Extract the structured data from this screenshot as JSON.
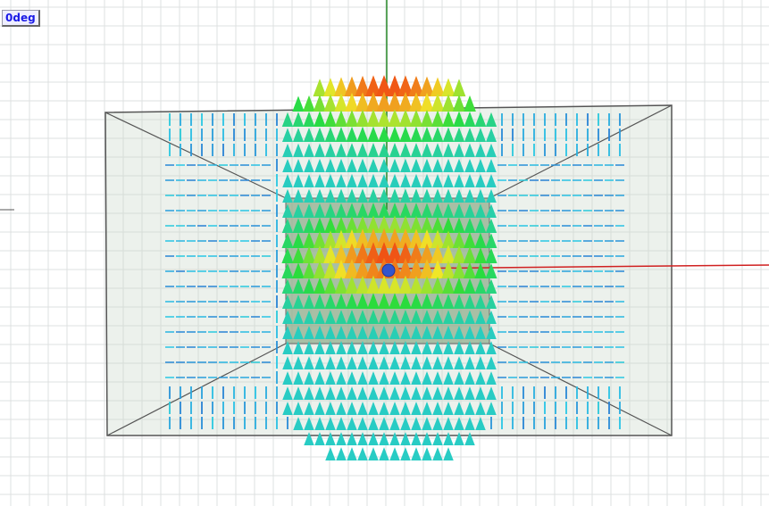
{
  "viewport": {
    "label": "0deg"
  }
}
